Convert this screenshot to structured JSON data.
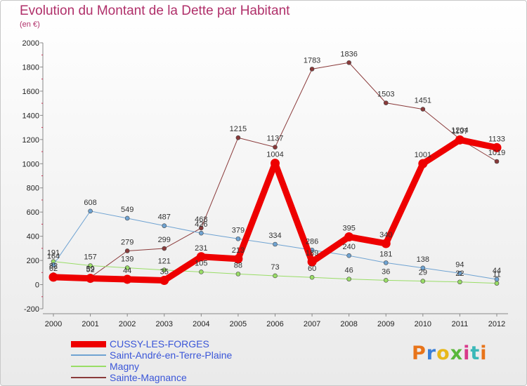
{
  "chart_data": {
    "type": "line",
    "title": "Evolution du Montant de la Dette par Habitant",
    "subtitle": "(en €)",
    "x": [
      "2000",
      "2001",
      "2002",
      "2003",
      "2004",
      "2005",
      "2006",
      "2007",
      "2008",
      "2009",
      "2010",
      "2011",
      "2012"
    ],
    "y_ticks": [
      "-200",
      "0",
      "200",
      "400",
      "600",
      "800",
      "1000",
      "1200",
      "1400",
      "1600",
      "1800",
      "2000"
    ],
    "ylim": [
      -200,
      2000
    ],
    "grid": false,
    "legend_position": "bottom-left",
    "series": [
      {
        "name": "CUSSY-LES-FORGES",
        "color": "#ee0000",
        "values": [
          62,
          52,
          44,
          35,
          231,
          213,
          1004,
          189,
          395,
          340,
          1001,
          1197,
          1133
        ],
        "labels": [
          "62",
          "52",
          "44",
          "35",
          "231",
          "213",
          "1004",
          "189",
          "395",
          "340",
          "1001",
          "1197",
          "1133"
        ]
      },
      {
        "name": "Saint-André-en-Terre-Plaine",
        "color": "#6fa3d2",
        "values": [
          164,
          608,
          549,
          487,
          426,
          379,
          334,
          286,
          240,
          181,
          138,
          94,
          44
        ],
        "labels": [
          "164",
          "608",
          "549",
          "487",
          "426",
          "379",
          "334",
          "286",
          "240",
          "181",
          "138",
          "94",
          "44"
        ]
      },
      {
        "name": "Magny",
        "color": "#99dd66",
        "values": [
          191,
          157,
          139,
          121,
          105,
          88,
          73,
          60,
          46,
          36,
          29,
          22,
          11
        ],
        "labels": [
          "191",
          "157",
          "139",
          "121",
          "105",
          "88",
          "73",
          "60",
          "46",
          "36",
          "29",
          "22",
          "11"
        ]
      },
      {
        "name": "Sainte-Magnance",
        "color": "#8a3a3a",
        "values": [
          82,
          59,
          279,
          299,
          468,
          1215,
          1137,
          1783,
          1836,
          1503,
          1451,
          1204,
          1019
        ],
        "labels": [
          "82",
          "59",
          "279",
          "299",
          "468",
          "1215",
          "1137",
          "1783",
          "1836",
          "1503",
          "1451",
          "1204",
          "1019"
        ]
      }
    ]
  },
  "logo": {
    "text": "Proxiti",
    "letters": [
      "P",
      "r",
      "o",
      "x",
      "i",
      "t",
      "i"
    ]
  },
  "colors": {
    "title": "#b0306a",
    "axis": "#888888",
    "legend_text": "#3a56d8"
  }
}
